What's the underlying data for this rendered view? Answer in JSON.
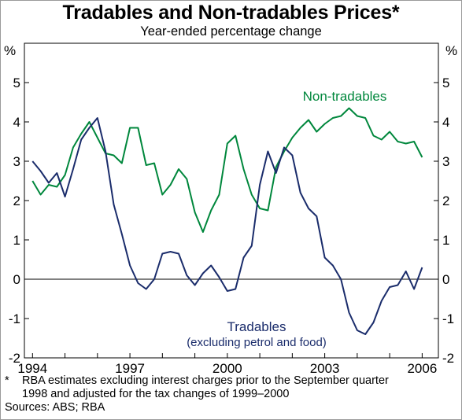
{
  "chart_data": {
    "type": "line",
    "title": "Tradables and Non-tradables Prices*",
    "subtitle": "Year-ended percentage change",
    "ylabel_left": "%",
    "ylabel_right": "%",
    "ylim": [
      -2,
      6
    ],
    "yticks": [
      -2,
      -1,
      0,
      1,
      2,
      3,
      4,
      5
    ],
    "xlim": [
      1993.75,
      2006.5
    ],
    "xticks": [
      1994,
      1997,
      2000,
      2003,
      2006
    ],
    "grid": false,
    "series": [
      {
        "name": "Non-tradables",
        "color": "#00873c",
        "points": [
          [
            1994.0,
            2.5
          ],
          [
            1994.25,
            2.15
          ],
          [
            1994.5,
            2.4
          ],
          [
            1994.75,
            2.35
          ],
          [
            1995.0,
            2.65
          ],
          [
            1995.25,
            3.35
          ],
          [
            1995.5,
            3.7
          ],
          [
            1995.75,
            4.0
          ],
          [
            1996.0,
            3.6
          ],
          [
            1996.25,
            3.2
          ],
          [
            1996.5,
            3.15
          ],
          [
            1996.75,
            2.95
          ],
          [
            1997.0,
            3.85
          ],
          [
            1997.25,
            3.85
          ],
          [
            1997.5,
            2.9
          ],
          [
            1997.75,
            2.95
          ],
          [
            1998.0,
            2.15
          ],
          [
            1998.25,
            2.4
          ],
          [
            1998.5,
            2.8
          ],
          [
            1998.75,
            2.55
          ],
          [
            1999.0,
            1.7
          ],
          [
            1999.25,
            1.2
          ],
          [
            1999.5,
            1.75
          ],
          [
            1999.75,
            2.15
          ],
          [
            2000.0,
            3.45
          ],
          [
            2000.25,
            3.65
          ],
          [
            2000.5,
            2.8
          ],
          [
            2000.75,
            2.15
          ],
          [
            2001.0,
            1.8
          ],
          [
            2001.25,
            1.75
          ],
          [
            2001.5,
            2.85
          ],
          [
            2001.75,
            3.25
          ],
          [
            2002.0,
            3.6
          ],
          [
            2002.25,
            3.85
          ],
          [
            2002.5,
            4.05
          ],
          [
            2002.75,
            3.75
          ],
          [
            2003.0,
            3.95
          ],
          [
            2003.25,
            4.1
          ],
          [
            2003.5,
            4.15
          ],
          [
            2003.75,
            4.35
          ],
          [
            2004.0,
            4.15
          ],
          [
            2004.25,
            4.1
          ],
          [
            2004.5,
            3.65
          ],
          [
            2004.75,
            3.55
          ],
          [
            2005.0,
            3.75
          ],
          [
            2005.25,
            3.5
          ],
          [
            2005.5,
            3.45
          ],
          [
            2005.75,
            3.5
          ],
          [
            2006.0,
            3.1
          ]
        ]
      },
      {
        "name": "Tradables",
        "color": "#1a2c6b",
        "points": [
          [
            1994.0,
            3.0
          ],
          [
            1994.25,
            2.75
          ],
          [
            1994.5,
            2.45
          ],
          [
            1994.75,
            2.7
          ],
          [
            1995.0,
            2.1
          ],
          [
            1995.25,
            2.8
          ],
          [
            1995.5,
            3.55
          ],
          [
            1995.75,
            3.85
          ],
          [
            1996.0,
            4.1
          ],
          [
            1996.25,
            3.25
          ],
          [
            1996.5,
            1.9
          ],
          [
            1996.75,
            1.15
          ],
          [
            1997.0,
            0.35
          ],
          [
            1997.25,
            -0.1
          ],
          [
            1997.5,
            -0.25
          ],
          [
            1997.75,
            0.0
          ],
          [
            1998.0,
            0.65
          ],
          [
            1998.25,
            0.7
          ],
          [
            1998.5,
            0.65
          ],
          [
            1998.75,
            0.1
          ],
          [
            1999.0,
            -0.15
          ],
          [
            1999.25,
            0.15
          ],
          [
            1999.5,
            0.35
          ],
          [
            1999.75,
            0.05
          ],
          [
            2000.0,
            -0.3
          ],
          [
            2000.25,
            -0.25
          ],
          [
            2000.5,
            0.55
          ],
          [
            2000.75,
            0.85
          ],
          [
            2001.0,
            2.4
          ],
          [
            2001.25,
            3.25
          ],
          [
            2001.5,
            2.7
          ],
          [
            2001.75,
            3.35
          ],
          [
            2002.0,
            3.15
          ],
          [
            2002.25,
            2.2
          ],
          [
            2002.5,
            1.8
          ],
          [
            2002.75,
            1.6
          ],
          [
            2003.0,
            0.55
          ],
          [
            2003.25,
            0.35
          ],
          [
            2003.5,
            0.0
          ],
          [
            2003.75,
            -0.85
          ],
          [
            2004.0,
            -1.3
          ],
          [
            2004.25,
            -1.4
          ],
          [
            2004.5,
            -1.1
          ],
          [
            2004.75,
            -0.55
          ],
          [
            2005.0,
            -0.2
          ],
          [
            2005.25,
            -0.15
          ],
          [
            2005.5,
            0.2
          ],
          [
            2005.75,
            -0.25
          ],
          [
            2006.0,
            0.3
          ]
        ]
      }
    ],
    "annotations": [
      {
        "text": "Non-tradables",
        "series": "Non-tradables"
      },
      {
        "text": "Tradables",
        "series": "Tradables"
      },
      {
        "text": "(excluding petrol and food)",
        "series": "Tradables"
      }
    ]
  },
  "footnote": {
    "marker": "*",
    "line1": "RBA estimates excluding interest charges prior to the September quarter",
    "line2": "1998 and adjusted for the tax changes of 1999–2000",
    "sources": "Sources: ABS; RBA"
  }
}
